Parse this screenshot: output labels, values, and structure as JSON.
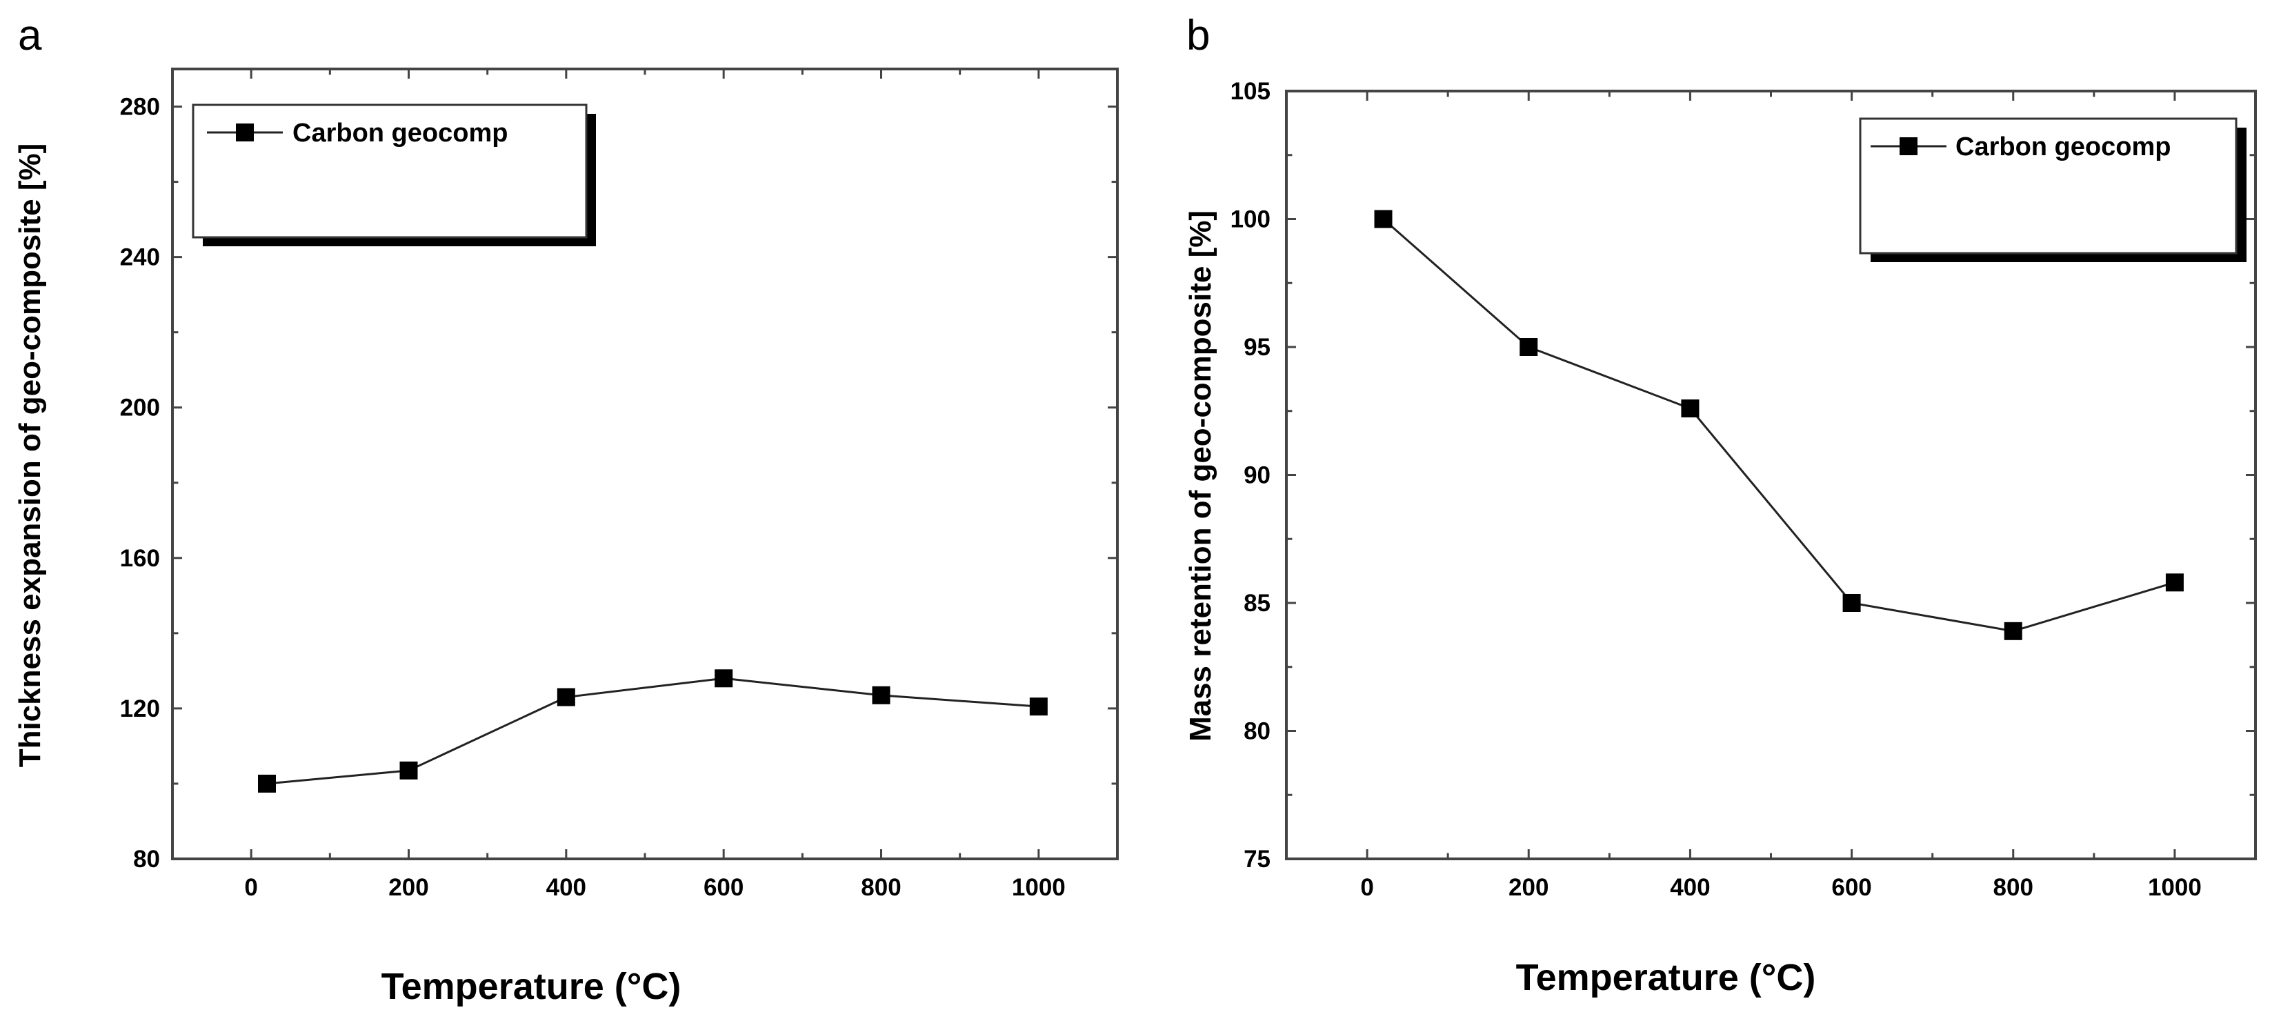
{
  "chart_data": [
    {
      "type": "line",
      "panel": "a",
      "title": "",
      "xlabel": "Temperature (°C)",
      "ylabel": "Thickness expansion of geo-composite [%]",
      "xlim": [
        -100,
        1100
      ],
      "ylim": [
        80,
        290
      ],
      "xticks": [
        0,
        200,
        400,
        600,
        800,
        1000
      ],
      "yticks": [
        80,
        120,
        160,
        200,
        240,
        280
      ],
      "grid": false,
      "legend_position": "top-left",
      "series": [
        {
          "name": "Carbon geocomp",
          "x": [
            20,
            200,
            400,
            600,
            800,
            1000
          ],
          "values": [
            100,
            103.5,
            123,
            128,
            123.5,
            120.5
          ]
        }
      ]
    },
    {
      "type": "line",
      "panel": "b",
      "title": "",
      "xlabel": "Temperature (°C)",
      "ylabel": "Mass retention of geo-composite [%]",
      "xlim": [
        -100,
        1100
      ],
      "ylim": [
        75,
        105
      ],
      "xticks": [
        0,
        200,
        400,
        600,
        800,
        1000
      ],
      "yticks": [
        75,
        80,
        85,
        90,
        95,
        100,
        105
      ],
      "grid": false,
      "legend_position": "top-right",
      "series": [
        {
          "name": "Carbon geocomp",
          "x": [
            20,
            200,
            400,
            600,
            800,
            1000
          ],
          "values": [
            100,
            95,
            92.6,
            85,
            83.9,
            85.8
          ]
        }
      ]
    }
  ]
}
